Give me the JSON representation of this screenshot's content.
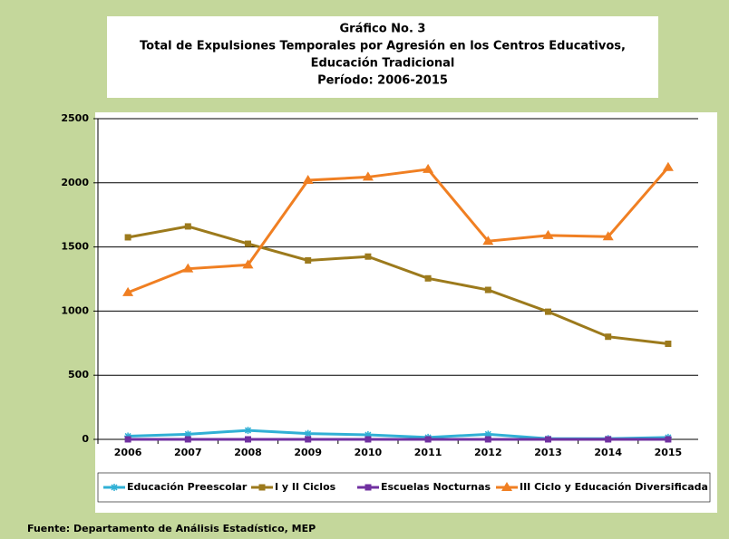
{
  "chart_data": {
    "type": "line",
    "title": [
      "Gráfico No. 3",
      "Total de Expulsiones Temporales por Agresión en los Centros Educativos,",
      "Educación Tradicional",
      "Período: 2006-2015"
    ],
    "categories": [
      "2006",
      "2007",
      "2008",
      "2009",
      "2010",
      "2011",
      "2012",
      "2013",
      "2014",
      "2015"
    ],
    "series": [
      {
        "name": "Educación Preescolar",
        "color": "#31b0d5",
        "marker": "star",
        "values": [
          25,
          40,
          70,
          45,
          35,
          15,
          40,
          5,
          5,
          15
        ]
      },
      {
        "name": "I y II Ciclos",
        "color": "#9c7a1c",
        "marker": "square",
        "values": [
          1575,
          1660,
          1525,
          1395,
          1425,
          1255,
          1165,
          995,
          800,
          745
        ]
      },
      {
        "name": "Escuelas Nocturnas",
        "color": "#7030a0",
        "marker": "square",
        "values": [
          0,
          0,
          0,
          0,
          0,
          0,
          0,
          0,
          0,
          0
        ]
      },
      {
        "name": "III Ciclo y Educación Diversificada",
        "color": "#f07f22",
        "marker": "triangle",
        "values": [
          1145,
          1330,
          1360,
          2020,
          2045,
          2105,
          1545,
          1590,
          1580,
          2120
        ]
      }
    ],
    "ylim": [
      0,
      2500
    ],
    "yticks": [
      0,
      500,
      1000,
      1500,
      2000,
      2500
    ],
    "grid": true,
    "source": "Fuente: Departamento de Análisis Estadístico, MEP"
  }
}
